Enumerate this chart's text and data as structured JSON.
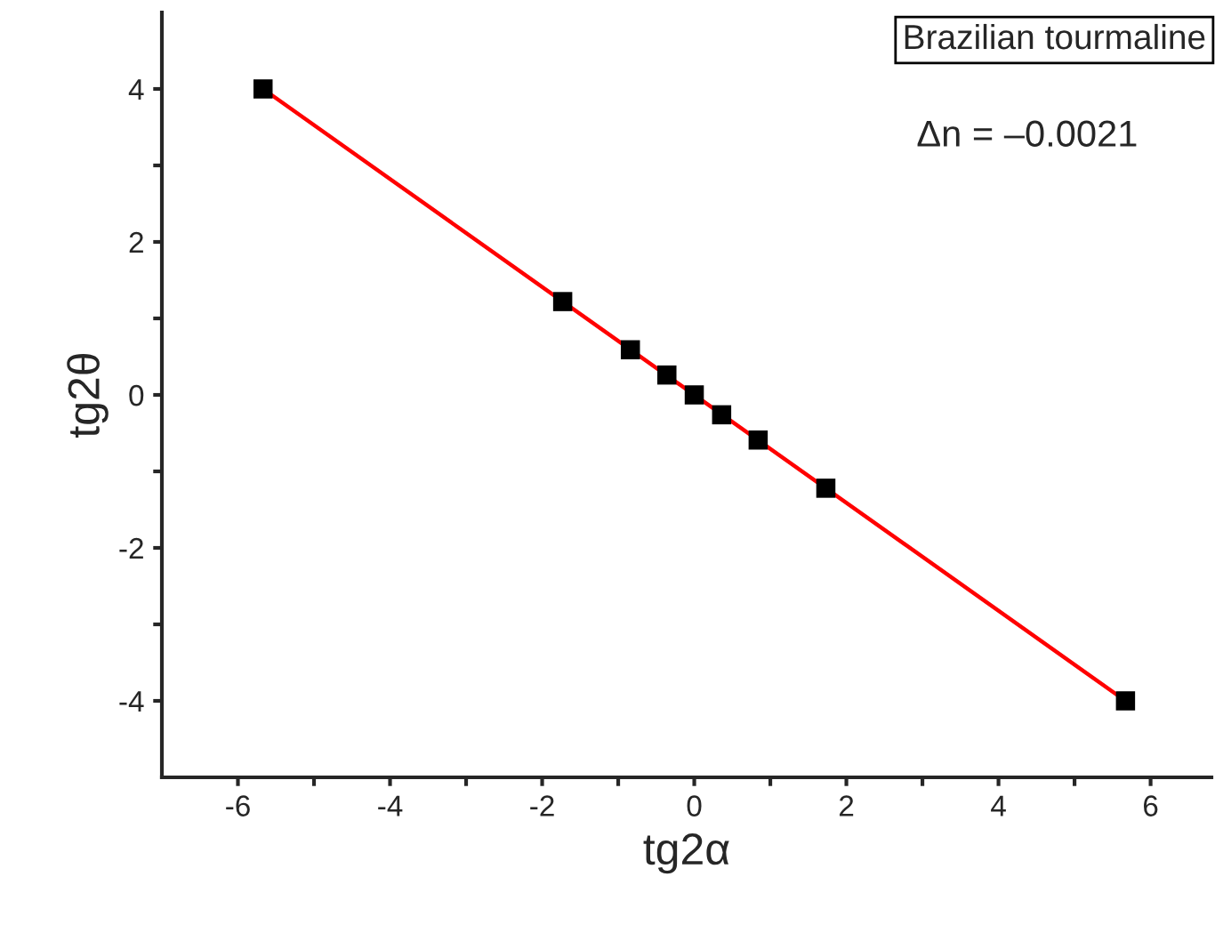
{
  "chart_data": {
    "type": "scatter",
    "xlabel": "tg2α",
    "ylabel": "tg2θ",
    "series": [
      {
        "color": "#000000",
        "marker": "square",
        "x": [
          -5.67,
          -1.73,
          -0.84,
          -0.36,
          0,
          0.36,
          0.84,
          1.73,
          5.67
        ],
        "values": [
          4,
          1.22,
          0.59,
          0.26,
          0,
          -0.26,
          -0.59,
          -1.22,
          -4
        ]
      },
      {
        "type": "line",
        "color": "#ff0000",
        "marker": "none",
        "line_style": "solid",
        "x": [
          -5.67,
          5.67
        ],
        "values": [
          4,
          -4
        ]
      }
    ],
    "annotations": [
      "Brazilian tourmaline",
      "Δn = –0.0021"
    ],
    "xlim": [
      -7,
      6.8
    ],
    "ylim": [
      -5,
      5
    ],
    "xticks": [
      -6,
      {
        "value": -5,
        "label": null
      },
      -4,
      {
        "value": -3,
        "label": null
      },
      -2,
      {
        "value": -1,
        "label": null
      },
      0,
      {
        "value": 1,
        "label": null
      },
      2,
      {
        "value": 3,
        "label": null
      },
      4,
      {
        "value": 5,
        "label": null
      },
      6
    ],
    "yticks": [
      -4,
      {
        "value": -3,
        "label": null
      },
      -2,
      {
        "value": -1,
        "label": null
      },
      0,
      {
        "value": 1,
        "label": null
      },
      2,
      {
        "value": 3,
        "label": null
      },
      4
    ],
    "grid": false,
    "legend": false
  }
}
